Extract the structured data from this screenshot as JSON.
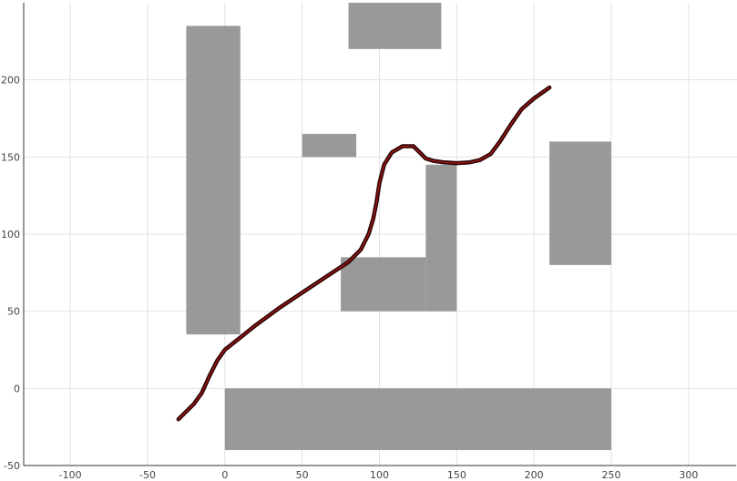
{
  "chart_data": {
    "type": "line",
    "title": "",
    "xlabel": "",
    "ylabel": "",
    "xlim": [
      -50,
      320
    ],
    "ylim": [
      -50,
      250
    ],
    "x_ticks": [
      -100,
      -50,
      0,
      50,
      100,
      150,
      200,
      250,
      300
    ],
    "y_ticks": [
      -50,
      0,
      50,
      100,
      150,
      200
    ],
    "grid": true,
    "legend": "none",
    "colors": {
      "obstacle": "#999999",
      "path_outer": "#2b0505",
      "path_inner": "#b01818"
    },
    "obstacles": [
      {
        "x0": -25,
        "x1": 10,
        "y0": 35,
        "y1": 235
      },
      {
        "x0": 80,
        "x1": 140,
        "y0": 220,
        "y1": 250
      },
      {
        "x0": 50,
        "x1": 85,
        "y0": 150,
        "y1": 165
      },
      {
        "x0": 75,
        "x1": 130,
        "y0": 50,
        "y1": 85
      },
      {
        "x0": 130,
        "x1": 150,
        "y0": 50,
        "y1": 145
      },
      {
        "x0": 210,
        "x1": 250,
        "y0": 80,
        "y1": 160
      },
      {
        "x0": 0,
        "x1": 250,
        "y0": -40,
        "y1": 0
      }
    ],
    "series": [
      {
        "x": [
          -30,
          -20,
          -15,
          -10,
          -5,
          0,
          10,
          20,
          35,
          50,
          65,
          80,
          88,
          93,
          96,
          98,
          100,
          103,
          108,
          115,
          122,
          127,
          130,
          135,
          142,
          150,
          158,
          165,
          172,
          178,
          185,
          192,
          200,
          210
        ],
        "y": [
          -20,
          -10,
          -3,
          8,
          18,
          25,
          33,
          41,
          52,
          62,
          72,
          82,
          90,
          100,
          110,
          120,
          133,
          145,
          153,
          157,
          157,
          152,
          149,
          147.5,
          146.5,
          146,
          146.5,
          148,
          152,
          160,
          171,
          181,
          188,
          195
        ]
      }
    ]
  }
}
